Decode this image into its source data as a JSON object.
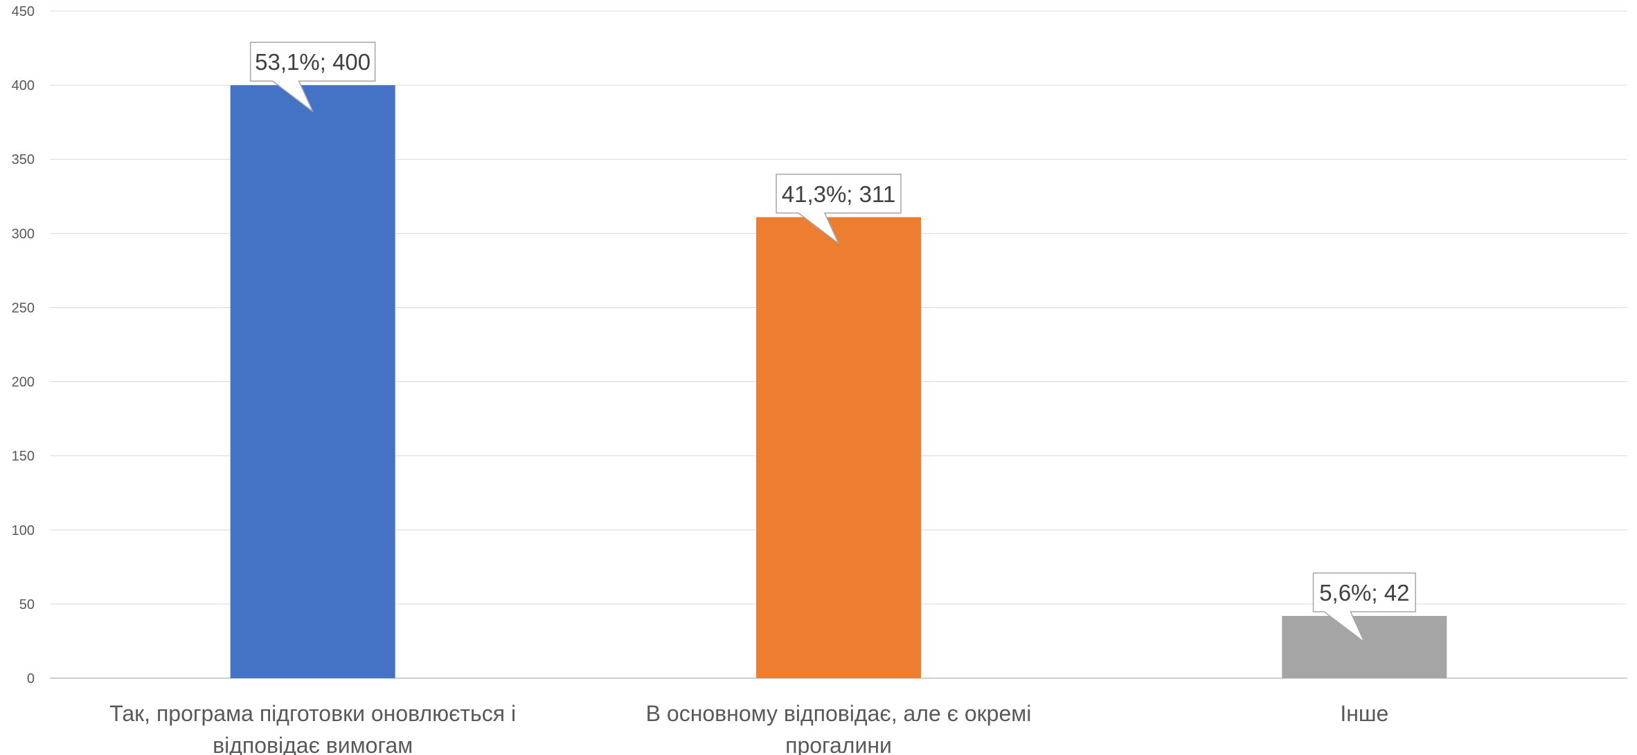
{
  "chart_data": {
    "type": "bar",
    "categories": [
      [
        "Так, програма підготовки оновлюється і",
        "відповідає вимогам"
      ],
      [
        "В основному відповідає, але є окремі",
        "прогалини"
      ],
      [
        "Інше"
      ]
    ],
    "values": [
      400,
      311,
      42
    ],
    "data_labels": [
      "53,1%; 400",
      "41,3%; 311",
      "5,6%; 42"
    ],
    "colors": [
      "#4472C4",
      "#ED7D31",
      "#A5A5A5"
    ],
    "yticks": [
      "0",
      "50",
      "100",
      "150",
      "200",
      "250",
      "300",
      "350",
      "400",
      "450"
    ],
    "ylim": [
      0,
      450
    ],
    "grid": true,
    "legend": "none",
    "title": "",
    "xlabel": "",
    "ylabel": ""
  }
}
